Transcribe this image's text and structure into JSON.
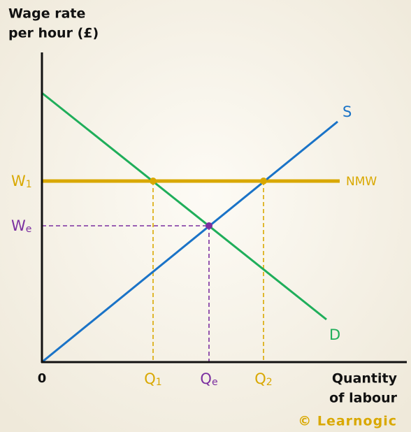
{
  "axes": {
    "y_label": [
      "Wage rate",
      "per hour (£)"
    ],
    "x_label": [
      "Quantity",
      "of labour"
    ],
    "origin": "0"
  },
  "curves": {
    "supply": "S",
    "demand": "D",
    "minimum_wage": "NMW"
  },
  "wage_labels": {
    "w1": {
      "main": "W",
      "sub": "1"
    },
    "we": {
      "main": "W",
      "sub": "e"
    }
  },
  "quantity_labels": {
    "q1": {
      "main": "Q",
      "sub": "1"
    },
    "qe": {
      "main": "Q",
      "sub": "e"
    },
    "q2": {
      "main": "Q",
      "sub": "2"
    }
  },
  "watermark": "© Learnogic"
}
